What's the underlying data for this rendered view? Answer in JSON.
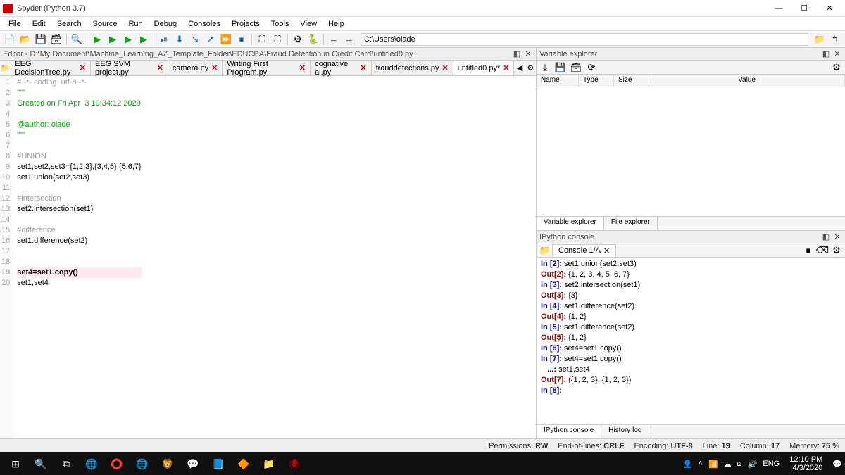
{
  "window": {
    "title": "Spyder (Python 3.7)"
  },
  "menubar": [
    "File",
    "Edit",
    "Search",
    "Source",
    "Run",
    "Debug",
    "Consoles",
    "Projects",
    "Tools",
    "View",
    "Help"
  ],
  "addressbar": "C:\\Users\\olade",
  "editor_header": "Editor - D:\\My Document\\Machine_Learning_AZ_Template_Folder\\EDUCBA\\Fraud Detection in Credit Card\\untitled0.py",
  "editor_tabs": [
    {
      "label": "EEG DecisionTree.py",
      "active": false
    },
    {
      "label": "EEG SVM project.py",
      "active": false
    },
    {
      "label": "camera.py",
      "active": false
    },
    {
      "label": "Writing First Program.py",
      "active": false
    },
    {
      "label": "cognative ai.py",
      "active": false
    },
    {
      "label": "frauddetections.py",
      "active": false
    },
    {
      "label": "untitled0.py*",
      "active": true
    }
  ],
  "code": [
    {
      "n": 1,
      "t": "# -*- coding: utf-8 -*-",
      "cls": "c-cmt"
    },
    {
      "n": 2,
      "t": "\"\"\"",
      "cls": "c-str"
    },
    {
      "n": 3,
      "t": "Created on Fri Apr  3 10:34:12 2020",
      "cls": "c-str"
    },
    {
      "n": 4,
      "t": "",
      "cls": ""
    },
    {
      "n": 5,
      "t": "@author: olade",
      "cls": "c-dec"
    },
    {
      "n": 6,
      "t": "\"\"\"",
      "cls": "c-str"
    },
    {
      "n": 7,
      "t": "",
      "cls": ""
    },
    {
      "n": 8,
      "t": "#UNION",
      "cls": "c-cmt"
    },
    {
      "n": 9,
      "t": "set1,set2,set3={1,2,3},{3,4,5},{5,6,7}",
      "cls": ""
    },
    {
      "n": 10,
      "t": "set1.union(set2,set3)",
      "cls": ""
    },
    {
      "n": 11,
      "t": "",
      "cls": ""
    },
    {
      "n": 12,
      "t": "#intersection",
      "cls": "c-cmt"
    },
    {
      "n": 13,
      "t": "set2.intersection(set1)",
      "cls": ""
    },
    {
      "n": 14,
      "t": "",
      "cls": ""
    },
    {
      "n": 15,
      "t": "#difference",
      "cls": "c-cmt"
    },
    {
      "n": 16,
      "t": "set1.difference(set2)",
      "cls": ""
    },
    {
      "n": 17,
      "t": "",
      "cls": ""
    },
    {
      "n": 18,
      "t": "",
      "cls": ""
    },
    {
      "n": 19,
      "t": "set4=set1.copy()",
      "cls": "",
      "hl": true,
      "bold": true
    },
    {
      "n": 20,
      "t": "set1,set4",
      "cls": ""
    }
  ],
  "varexp_header": "Variable explorer",
  "varexp_cols": [
    "Name",
    "Type",
    "Size",
    "Value"
  ],
  "varexp_tabs": [
    "Variable explorer",
    "File explorer"
  ],
  "ipython_header": "IPython console",
  "ipython_tab": "Console 1/A",
  "ipython_lines": [
    {
      "p": "In [2]: ",
      "t": "set1.union(set2,set3)",
      "pt": "in"
    },
    {
      "p": "Out[2]: ",
      "t": "{1, 2, 3, 4, 5, 6, 7}",
      "pt": "out"
    },
    {
      "p": "",
      "t": "",
      "pt": ""
    },
    {
      "p": "In [3]: ",
      "t": "set2.intersection(set1)",
      "pt": "in"
    },
    {
      "p": "Out[3]: ",
      "t": "{3}",
      "pt": "out"
    },
    {
      "p": "",
      "t": "",
      "pt": ""
    },
    {
      "p": "In [4]: ",
      "t": "set1.difference(set2)",
      "pt": "in"
    },
    {
      "p": "Out[4]: ",
      "t": "{1, 2}",
      "pt": "out"
    },
    {
      "p": "",
      "t": "",
      "pt": ""
    },
    {
      "p": "In [5]: ",
      "t": "set1.difference(set2)",
      "pt": "in"
    },
    {
      "p": "Out[5]: ",
      "t": "{1, 2}",
      "pt": "out"
    },
    {
      "p": "",
      "t": "",
      "pt": ""
    },
    {
      "p": "In [6]: ",
      "t": "set4=set1.copy()",
      "pt": "in"
    },
    {
      "p": "",
      "t": "",
      "pt": ""
    },
    {
      "p": "In [7]: ",
      "t": "set4=set1.copy()",
      "pt": "in"
    },
    {
      "p": "   ...: ",
      "t": "set1,set4",
      "pt": "in"
    },
    {
      "p": "Out[7]: ",
      "t": "({1, 2, 3}, {1, 2, 3})",
      "pt": "out"
    },
    {
      "p": "",
      "t": "",
      "pt": ""
    },
    {
      "p": "In [8]: ",
      "t": "",
      "pt": "in"
    }
  ],
  "ipython_tabs": [
    "IPython console",
    "History log"
  ],
  "status": {
    "perm_label": "Permissions:",
    "perm": "RW",
    "eol_label": "End-of-lines:",
    "eol": "CRLF",
    "enc_label": "Encoding:",
    "enc": "UTF-8",
    "line_label": "Line:",
    "line": "19",
    "col_label": "Column:",
    "col": "17",
    "mem_label": "Memory:",
    "mem": "75 %"
  },
  "tray": {
    "lang": "ENG",
    "time": "12:10 PM",
    "date": "4/3/2020"
  }
}
